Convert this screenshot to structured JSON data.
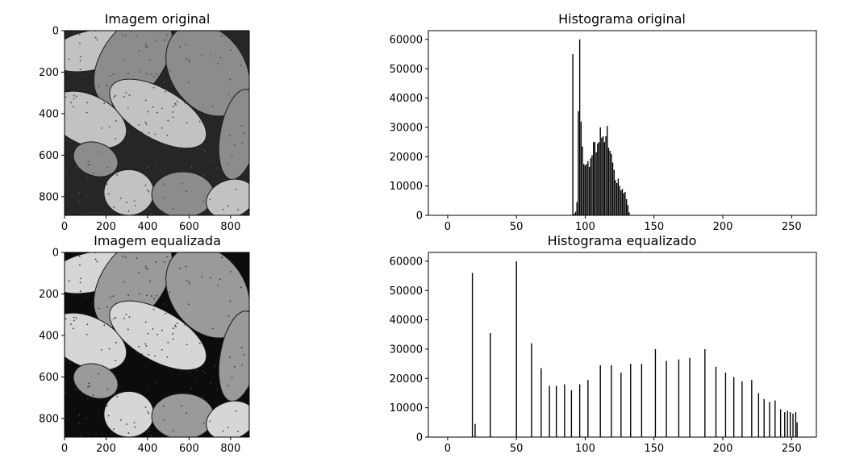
{
  "figure": {
    "titles": {
      "img_orig": "Imagem original",
      "hist_orig": "Histograma original",
      "img_eq": "Imagem equalizada",
      "hist_eq": "Histograma equalizado"
    }
  },
  "chart_data": [
    {
      "type": "image",
      "title": "Imagem original",
      "xlim": [
        0,
        890
      ],
      "ylim": [
        890,
        0
      ],
      "xticks": [
        0,
        200,
        400,
        600,
        800
      ],
      "yticks": [
        0,
        200,
        400,
        600,
        800
      ],
      "contrast": "low"
    },
    {
      "type": "bar",
      "title": "Histograma original",
      "xlim": [
        -14,
        268
      ],
      "ylim": [
        0,
        63000
      ],
      "xticks": [
        0,
        50,
        100,
        150,
        200,
        250
      ],
      "yticks": [
        0,
        10000,
        20000,
        30000,
        40000,
        50000,
        60000
      ],
      "bar_color": "#000000",
      "x": [
        91,
        92,
        93,
        94,
        95,
        96,
        97,
        98,
        99,
        100,
        101,
        102,
        103,
        104,
        105,
        106,
        107,
        108,
        109,
        110,
        111,
        112,
        113,
        114,
        115,
        116,
        117,
        118,
        119,
        120,
        121,
        122,
        123,
        124,
        125,
        126,
        127,
        128,
        129,
        130,
        131,
        132,
        133,
        134,
        135
      ],
      "values": [
        55000,
        500,
        1200,
        4500,
        35500,
        60000,
        32000,
        23500,
        17500,
        17000,
        17500,
        18500,
        16500,
        19500,
        20500,
        25000,
        25000,
        21500,
        24500,
        25000,
        30000,
        26500,
        27000,
        25000,
        27000,
        30500,
        23000,
        22000,
        21000,
        18000,
        15500,
        12000,
        11000,
        12500,
        10000,
        8500,
        9000,
        7500,
        8000,
        5500,
        3500,
        1000,
        0,
        0,
        0
      ]
    },
    {
      "type": "image",
      "title": "Imagem equalizada",
      "xlim": [
        0,
        890
      ],
      "ylim": [
        890,
        0
      ],
      "xticks": [
        0,
        200,
        400,
        600,
        800
      ],
      "yticks": [
        0,
        200,
        400,
        600,
        800
      ],
      "contrast": "high"
    },
    {
      "type": "bar",
      "title": "Histograma equalizado",
      "xlim": [
        -14,
        268
      ],
      "ylim": [
        0,
        63000
      ],
      "xticks": [
        0,
        50,
        100,
        150,
        200,
        250
      ],
      "yticks": [
        0,
        10000,
        20000,
        30000,
        40000,
        50000,
        60000
      ],
      "bar_color": "#000000",
      "x": [
        18,
        20,
        31,
        50,
        61,
        68,
        74,
        79,
        85,
        90,
        96,
        102,
        111,
        119,
        126,
        133,
        141,
        151,
        159,
        168,
        176,
        187,
        195,
        202,
        208,
        214,
        221,
        226,
        230,
        234,
        238,
        242,
        245,
        247,
        249,
        251,
        253,
        254
      ],
      "values": [
        56000,
        4500,
        35500,
        60000,
        32000,
        23500,
        17500,
        17500,
        18000,
        16000,
        18000,
        19500,
        24500,
        24500,
        22000,
        25000,
        25000,
        30000,
        26000,
        26500,
        27000,
        30000,
        24000,
        22000,
        20500,
        19000,
        19500,
        15000,
        13000,
        12000,
        12500,
        9500,
        8500,
        9000,
        8500,
        8000,
        8500,
        5000
      ]
    }
  ]
}
